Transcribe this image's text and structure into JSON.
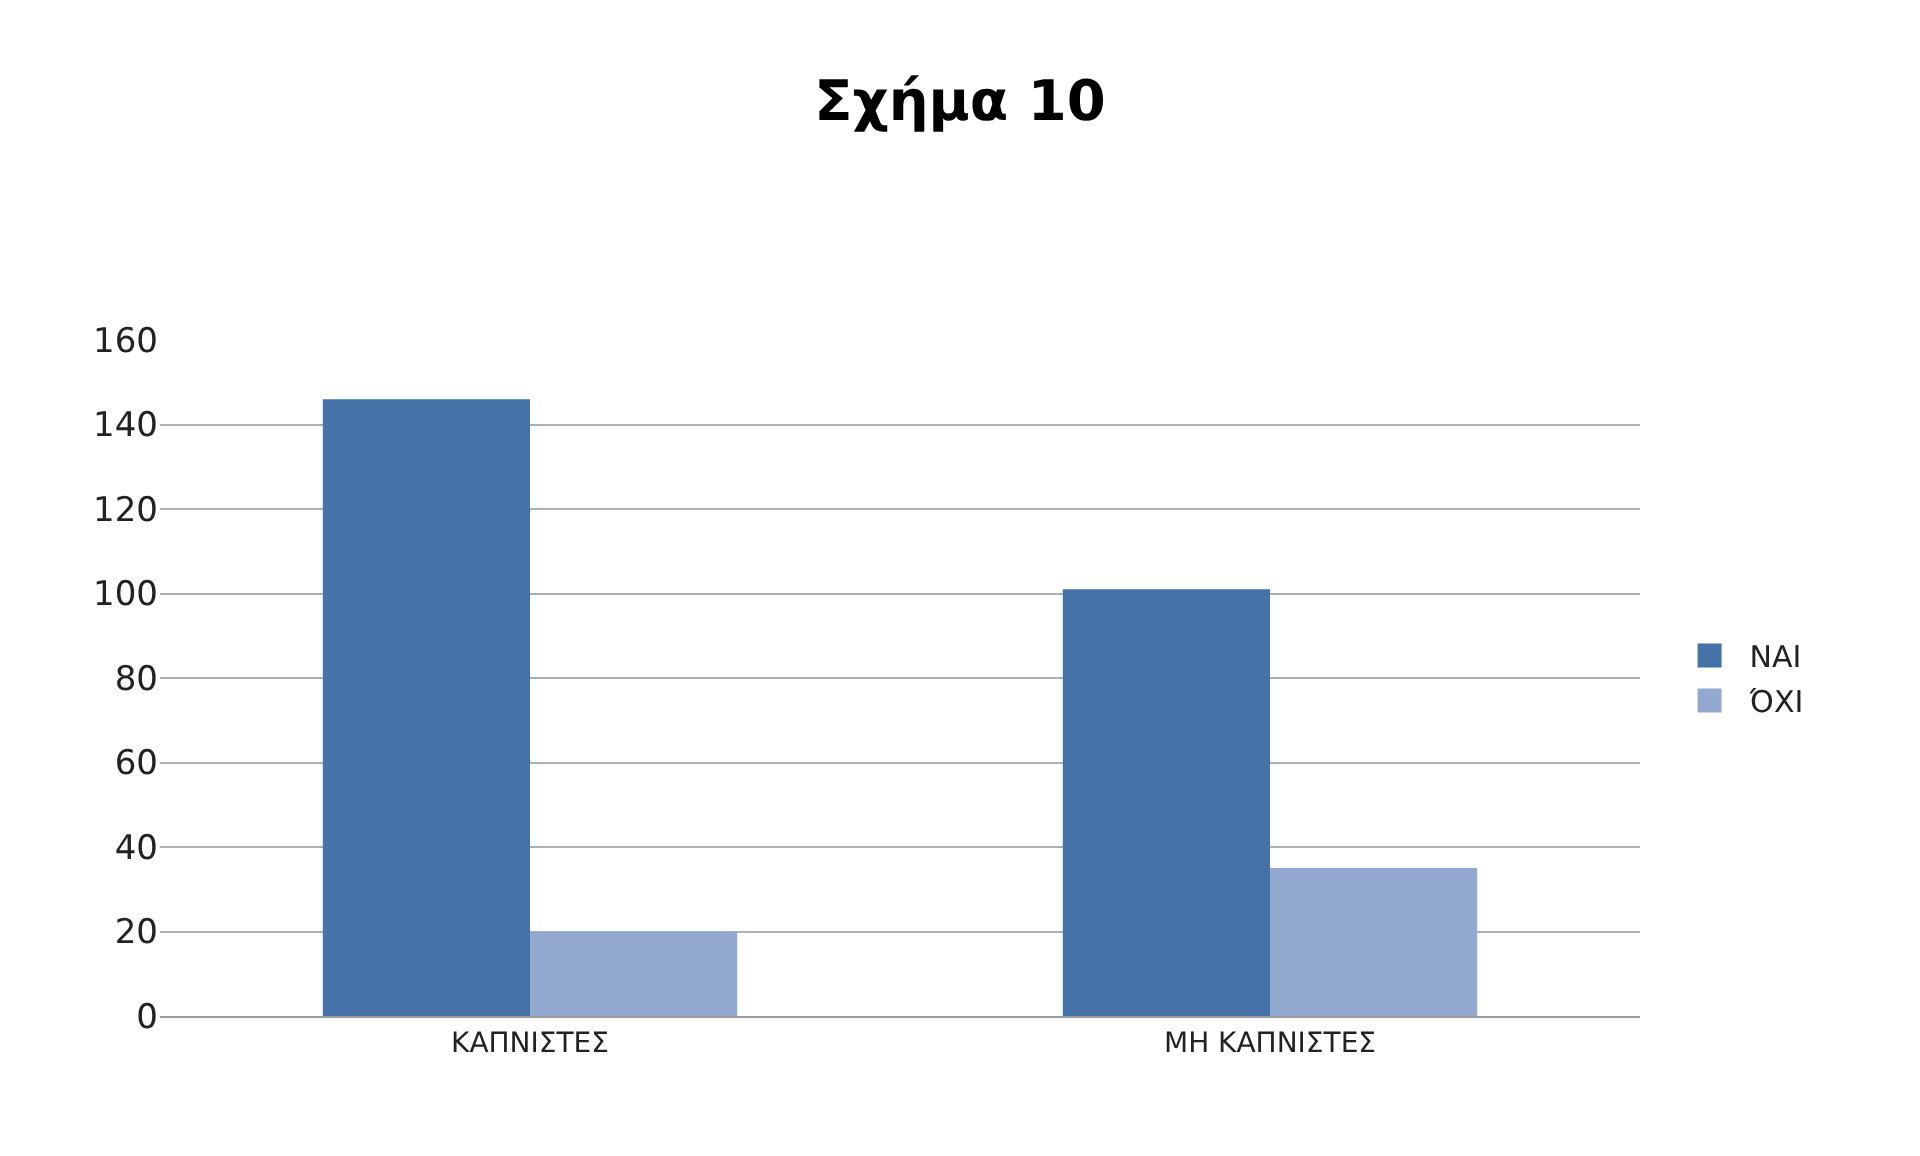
{
  "chart_data": {
    "type": "bar",
    "title": "Σχήμα 10",
    "categories": [
      "ΚΑΠΝΙΣΤΕΣ",
      "ΜΗ ΚΑΠΝΙΣΤΕΣ"
    ],
    "series": [
      {
        "name": "ΝΑΙ",
        "color": "#4572a7",
        "values": [
          146,
          101
        ]
      },
      {
        "name": "ΌΧΙ",
        "color": "#93a9cf",
        "values": [
          20,
          35
        ]
      }
    ],
    "ylim": [
      0,
      160
    ],
    "yticks": [
      0,
      20,
      40,
      60,
      80,
      100,
      120,
      140,
      160
    ],
    "grid": "y",
    "legend": "right"
  }
}
